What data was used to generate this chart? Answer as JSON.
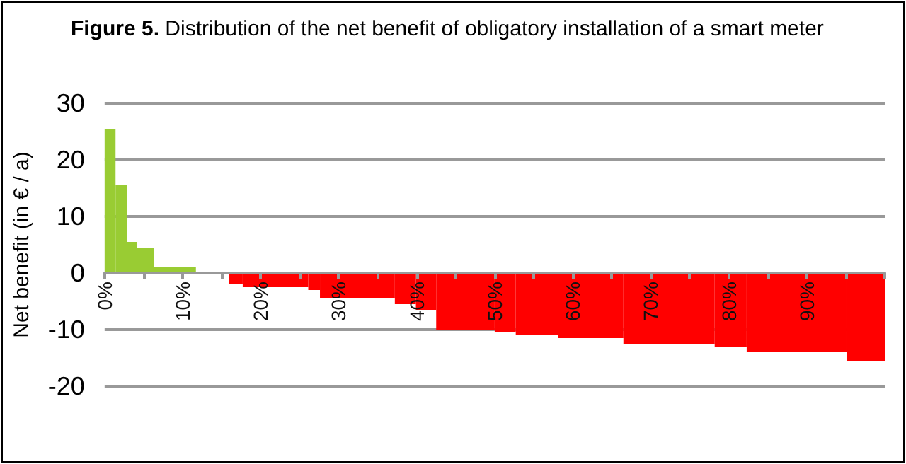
{
  "chart_data": {
    "type": "histogram",
    "title": "Figure 5. Distribution of the net benefit of obligatory installation of a smart meter",
    "ylabel": "Net benefit (in € / a)",
    "bins": [
      0,
      1.4,
      2.9,
      4.1,
      6.3,
      11.7,
      15.9,
      17.7,
      26.1,
      27.6,
      37.2,
      39.9,
      42.5,
      50,
      52.7,
      58.1,
      66.5,
      78.2,
      82.3,
      95.1,
      100
    ],
    "values": [
      25.5,
      15.5,
      5.5,
      4.5,
      1,
      0,
      -2,
      -2.5,
      -3,
      -4.5,
      -5.5,
      -6.5,
      -10,
      -10.5,
      -11,
      -11.5,
      -12.5,
      -13,
      -14,
      -15.5
    ],
    "colors": [
      "#99cc33",
      "#99cc33",
      "#99cc33",
      "#99cc33",
      "#99cc33",
      "#ff0000",
      "#ff0000",
      "#ff0000",
      "#ff0000",
      "#ff0000",
      "#ff0000",
      "#ff0000",
      "#ff0000",
      "#ff0000",
      "#ff0000",
      "#ff0000",
      "#ff0000",
      "#ff0000",
      "#ff0000",
      "#ff0000"
    ],
    "xlim": [
      0,
      100
    ],
    "xticks": [
      {
        "value": 0,
        "label": "0%"
      },
      {
        "value": 5,
        "label": null
      },
      {
        "value": 10,
        "label": "10%"
      },
      {
        "value": 15,
        "label": null
      },
      {
        "value": 20,
        "label": "20%"
      },
      {
        "value": 25,
        "label": null
      },
      {
        "value": 30,
        "label": "30%"
      },
      {
        "value": 35,
        "label": null
      },
      {
        "value": 40,
        "label": "40%"
      },
      {
        "value": 45,
        "label": null
      },
      {
        "value": 50,
        "label": "50%"
      },
      {
        "value": 55,
        "label": null
      },
      {
        "value": 60,
        "label": "60%"
      },
      {
        "value": 65,
        "label": null
      },
      {
        "value": 70,
        "label": "70%"
      },
      {
        "value": 75,
        "label": null
      },
      {
        "value": 80,
        "label": "80%"
      },
      {
        "value": 85,
        "label": null
      },
      {
        "value": 90,
        "label": "90%"
      },
      {
        "value": 95,
        "label": null
      },
      {
        "value": 100,
        "label": null
      }
    ],
    "ylim": [
      -20,
      30
    ],
    "yticks": [
      -20,
      -10,
      0,
      10,
      20,
      30
    ],
    "grid": "y"
  }
}
